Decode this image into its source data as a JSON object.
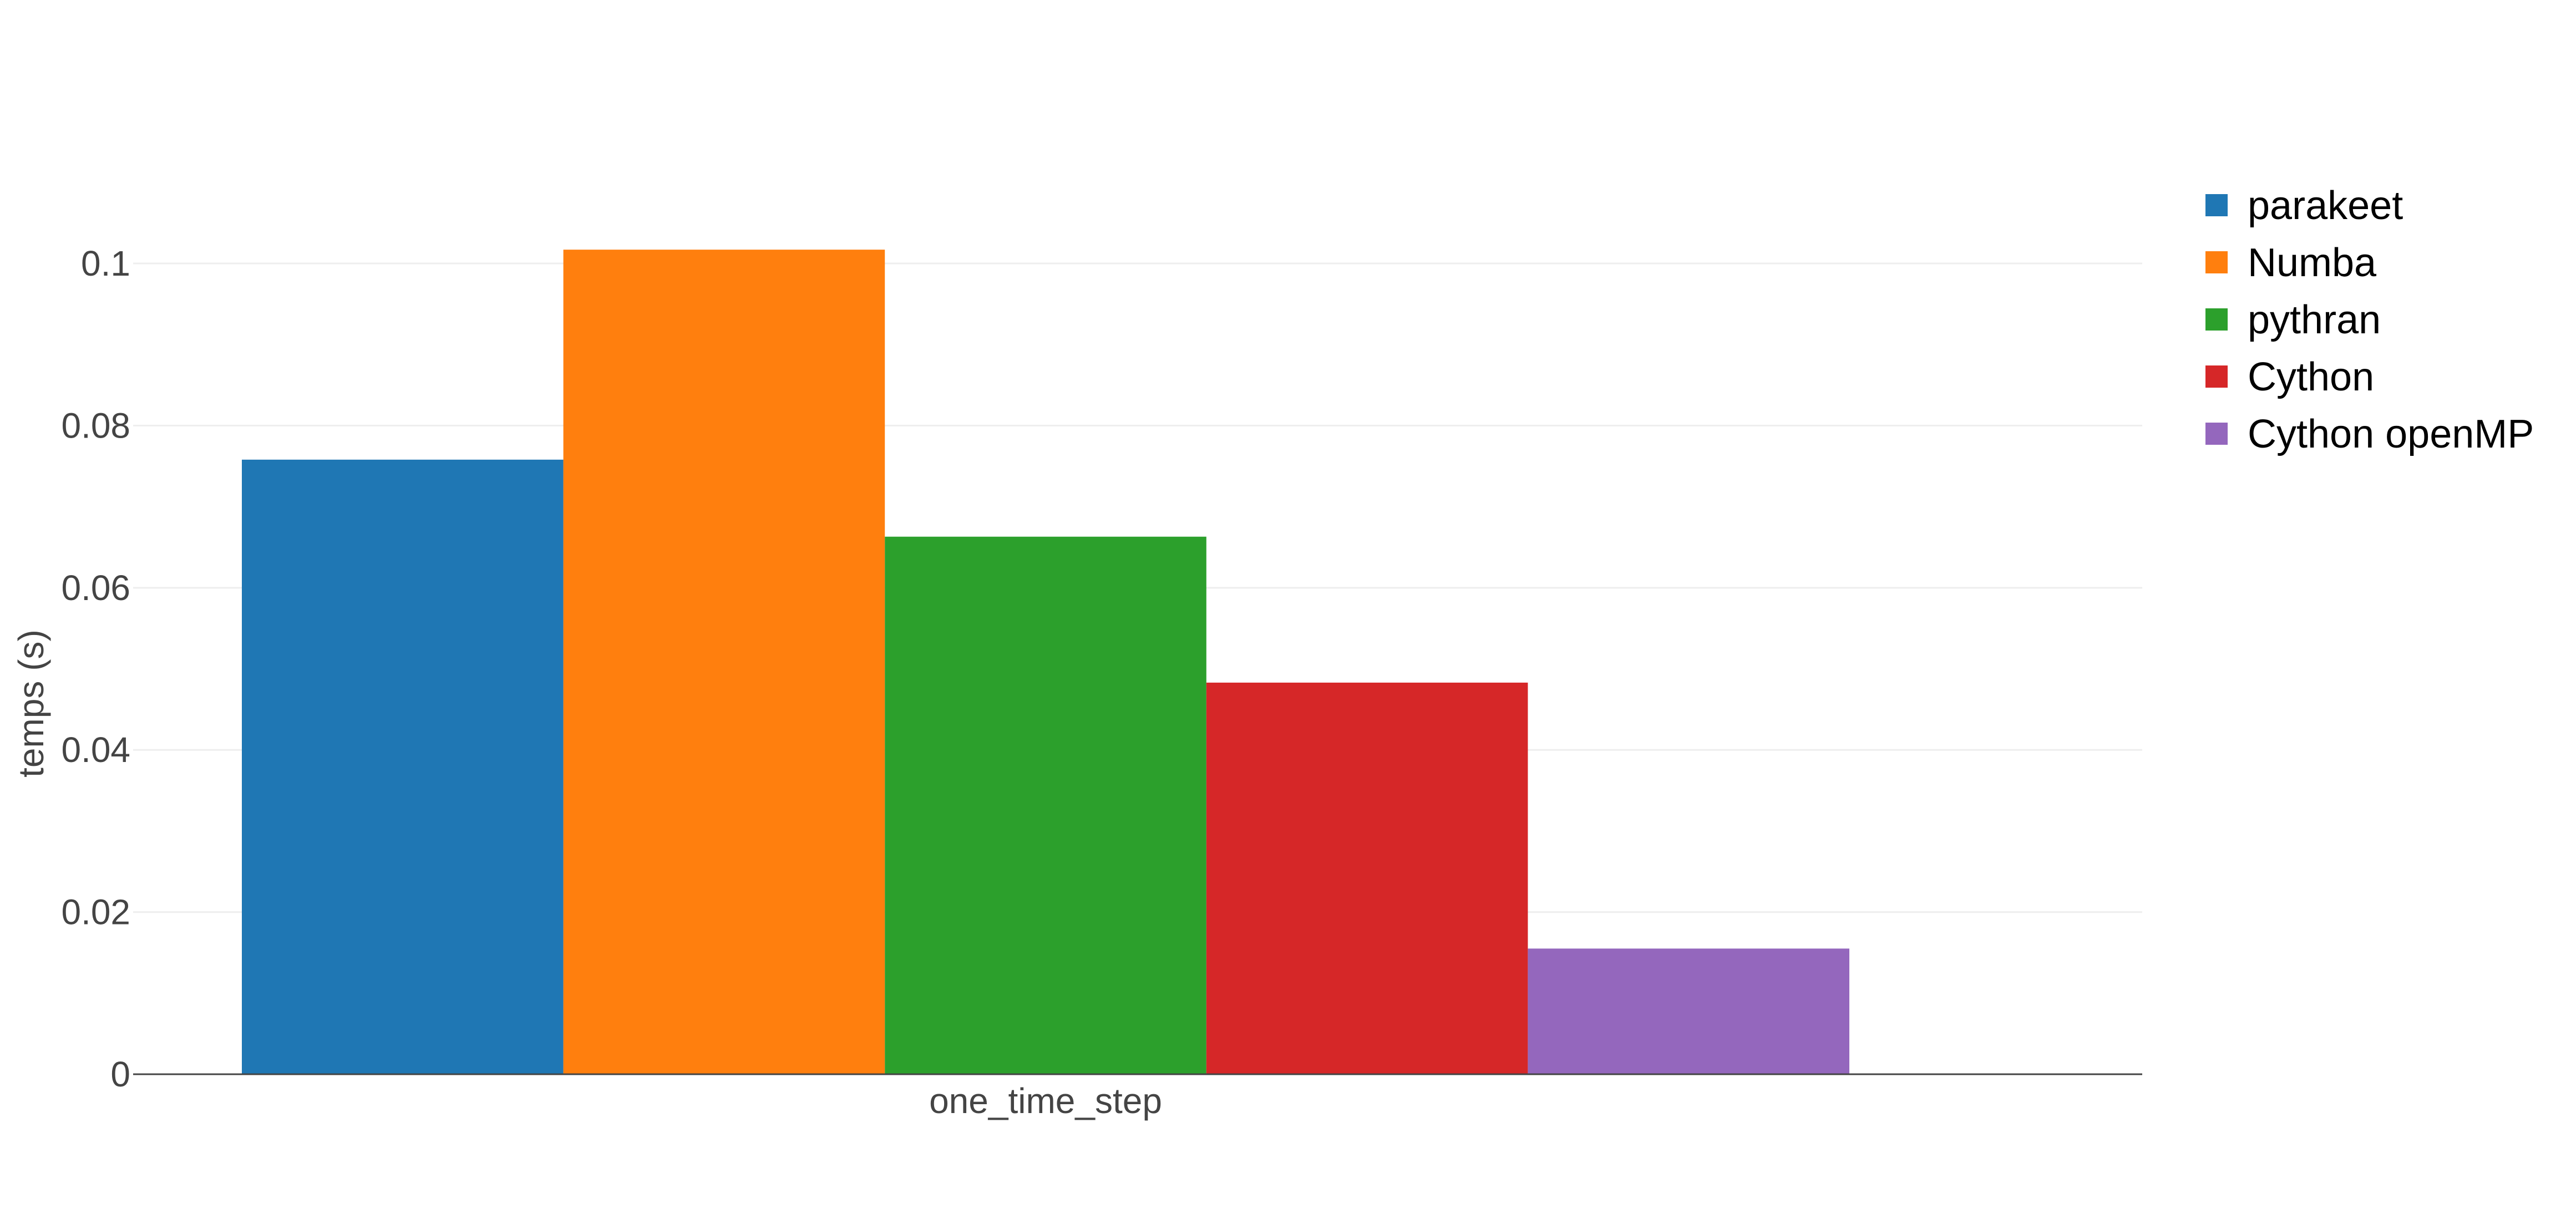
{
  "chart_data": {
    "type": "bar",
    "title": "",
    "xlabel": "",
    "ylabel": "temps (s)",
    "categories": [
      "one_time_step"
    ],
    "ylim": [
      0,
      0.1065
    ],
    "yticks": [
      0,
      0.02,
      0.04,
      0.06,
      0.08,
      0.1
    ],
    "ytick_labels": [
      "0",
      "0.02",
      "0.04",
      "0.06",
      "0.08",
      "0.1"
    ],
    "grid": true,
    "legend_position": "top-right",
    "series": [
      {
        "name": "parakeet",
        "values": [
          0.0758
        ],
        "color": "#1f77b4"
      },
      {
        "name": "Numba",
        "values": [
          0.1017
        ],
        "color": "#ff7f0e"
      },
      {
        "name": "pythran",
        "values": [
          0.0663
        ],
        "color": "#2ca02c"
      },
      {
        "name": "Cython",
        "values": [
          0.0483
        ],
        "color": "#d62728"
      },
      {
        "name": "Cython openMP",
        "values": [
          0.0155
        ],
        "color": "#9467bd"
      }
    ],
    "colors": {
      "grid": "#eeeeee",
      "axis_line": "#444444",
      "text": "#444444"
    }
  }
}
